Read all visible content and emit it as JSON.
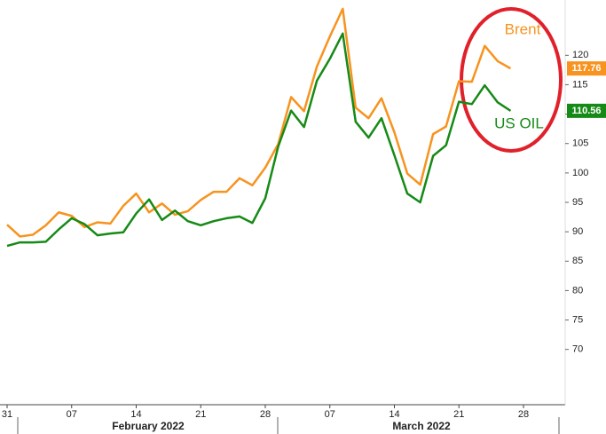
{
  "chart_data": {
    "type": "line",
    "categories": [
      "31",
      null,
      null,
      null,
      null,
      "07",
      null,
      null,
      null,
      null,
      "14",
      null,
      null,
      null,
      null,
      "21",
      null,
      null,
      null,
      null,
      "28",
      null,
      null,
      null,
      null,
      "07",
      null,
      null,
      null,
      null,
      "14",
      null,
      null,
      null,
      null,
      "21",
      null,
      null,
      null,
      null,
      "28"
    ],
    "month_labels": [
      "February 2022",
      "March 2022"
    ],
    "series": [
      {
        "name": "Brent",
        "color": "#f7931e",
        "values": [
          91.2,
          89.2,
          89.5,
          91.1,
          93.3,
          92.7,
          90.8,
          91.6,
          91.4,
          94.4,
          96.5,
          93.3,
          94.8,
          92.9,
          93.5,
          95.4,
          96.8,
          96.8,
          99.1,
          97.9,
          100.9,
          104.9,
          112.9,
          110.5,
          118.1,
          123.2,
          127.9,
          111.1,
          109.3,
          112.7,
          106.9,
          99.9,
          98.0,
          106.6,
          107.9,
          115.6,
          115.5,
          121.6,
          119.0,
          117.76,
          null
        ]
      },
      {
        "name": "US OIL",
        "color": "#168a16",
        "values": [
          87.6,
          88.2,
          88.2,
          88.3,
          90.4,
          92.3,
          91.3,
          89.4,
          89.7,
          89.9,
          93.1,
          95.5,
          92.0,
          93.6,
          91.8,
          91.1,
          91.8,
          92.3,
          92.6,
          91.5,
          95.7,
          104.5,
          110.6,
          107.8,
          115.7,
          119.4,
          123.7,
          108.7,
          106.0,
          109.3,
          103.0,
          96.5,
          95.0,
          102.9,
          104.7,
          112.1,
          111.7,
          114.9,
          112.0,
          110.56,
          null
        ]
      }
    ],
    "ylim": [
      60.6,
      129.4
    ],
    "yticks": [
      70,
      75,
      80,
      85,
      90,
      95,
      100,
      105,
      110,
      115,
      120
    ]
  }
}
